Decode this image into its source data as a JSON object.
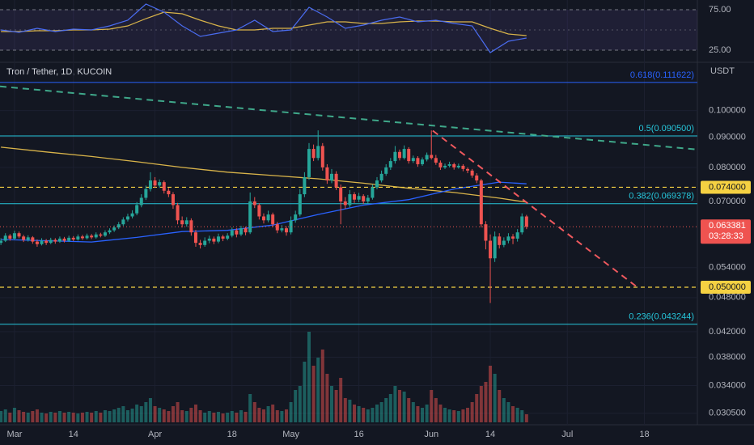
{
  "chart_data": {
    "type": "candlestick",
    "title": "Tron / Tether, 1D, KUCOIN",
    "y_axis_label": "USDT",
    "log_scale": true,
    "grid": true,
    "up_color": "#26a69a",
    "down_color": "#ef5350",
    "xlim": [
      -3.2,
      150.7
    ],
    "xticks": [
      {
        "value": 0,
        "label": "Mar"
      },
      {
        "value": 13,
        "label": "14"
      },
      {
        "value": 31,
        "label": "Apr"
      },
      {
        "value": 48,
        "label": "18"
      },
      {
        "value": 61,
        "label": "May"
      },
      {
        "value": 76,
        "label": "16"
      },
      {
        "value": 92,
        "label": "Jun"
      },
      {
        "value": 105,
        "label": "14"
      },
      {
        "value": 122,
        "label": "Jul"
      },
      {
        "value": 139,
        "label": "18"
      }
    ],
    "ylim": [
      0.02915,
      0.1141
    ],
    "yticks": [
      {
        "value": 0.1,
        "label": "0.100000"
      },
      {
        "value": 0.09,
        "label": "0.090000"
      },
      {
        "value": 0.08,
        "label": "0.080000"
      },
      {
        "value": 0.07,
        "label": "0.070000"
      },
      {
        "value": 0.054,
        "label": "0.054000"
      },
      {
        "value": 0.048,
        "label": "0.048000"
      },
      {
        "value": 0.042,
        "label": "0.042000"
      },
      {
        "value": 0.038,
        "label": "0.038000"
      },
      {
        "value": 0.034,
        "label": "0.034000"
      },
      {
        "value": 0.0305,
        "label": "0.030500"
      }
    ],
    "x": [
      -3,
      -2,
      -1,
      0,
      1,
      2,
      3,
      4,
      5,
      6,
      7,
      8,
      9,
      10,
      11,
      12,
      13,
      14,
      15,
      16,
      17,
      18,
      19,
      20,
      21,
      22,
      23,
      24,
      25,
      26,
      27,
      28,
      29,
      30,
      31,
      32,
      33,
      34,
      35,
      36,
      37,
      38,
      39,
      40,
      41,
      42,
      43,
      44,
      45,
      46,
      47,
      48,
      49,
      50,
      51,
      52,
      53,
      54,
      55,
      56,
      57,
      58,
      59,
      60,
      61,
      62,
      63,
      64,
      65,
      66,
      67,
      68,
      69,
      70,
      71,
      72,
      73,
      74,
      75,
      76,
      77,
      78,
      79,
      80,
      81,
      82,
      83,
      84,
      85,
      86,
      87,
      88,
      89,
      90,
      91,
      92,
      93,
      94,
      95,
      96,
      97,
      98,
      99,
      100,
      101,
      102,
      103,
      104,
      105,
      106,
      107,
      108,
      109,
      110,
      111,
      112,
      113
    ],
    "ohlc": [
      [
        0.0595,
        0.0606,
        0.059,
        0.06
      ],
      [
        0.06,
        0.0618,
        0.0597,
        0.0612
      ],
      [
        0.0612,
        0.0616,
        0.06,
        0.0605
      ],
      [
        0.0605,
        0.0624,
        0.0602,
        0.0618
      ],
      [
        0.0618,
        0.0622,
        0.0606,
        0.061
      ],
      [
        0.061,
        0.0614,
        0.0597,
        0.0602
      ],
      [
        0.0602,
        0.0613,
        0.0598,
        0.0608
      ],
      [
        0.0608,
        0.0611,
        0.0593,
        0.0598
      ],
      [
        0.0598,
        0.0603,
        0.0586,
        0.0592
      ],
      [
        0.0592,
        0.0606,
        0.0589,
        0.06
      ],
      [
        0.06,
        0.0604,
        0.059,
        0.0595
      ],
      [
        0.0595,
        0.0607,
        0.0592,
        0.0602
      ],
      [
        0.0602,
        0.0606,
        0.0593,
        0.0598
      ],
      [
        0.0598,
        0.061,
        0.0595,
        0.0605
      ],
      [
        0.0605,
        0.0609,
        0.0596,
        0.06
      ],
      [
        0.06,
        0.0612,
        0.0597,
        0.0607
      ],
      [
        0.0607,
        0.0611,
        0.0599,
        0.0603
      ],
      [
        0.0603,
        0.0615,
        0.06,
        0.061
      ],
      [
        0.061,
        0.0614,
        0.0602,
        0.0606
      ],
      [
        0.0606,
        0.0617,
        0.0603,
        0.0612
      ],
      [
        0.0612,
        0.0616,
        0.0604,
        0.0608
      ],
      [
        0.0608,
        0.062,
        0.0605,
        0.0615
      ],
      [
        0.0615,
        0.0619,
        0.0608,
        0.0612
      ],
      [
        0.0612,
        0.0625,
        0.0609,
        0.062
      ],
      [
        0.062,
        0.063,
        0.0616,
        0.0625
      ],
      [
        0.0625,
        0.0637,
        0.0621,
        0.0632
      ],
      [
        0.0632,
        0.0646,
        0.0628,
        0.064
      ],
      [
        0.064,
        0.0658,
        0.0636,
        0.0652
      ],
      [
        0.0652,
        0.0667,
        0.0647,
        0.066
      ],
      [
        0.066,
        0.0676,
        0.0655,
        0.0668
      ],
      [
        0.0668,
        0.0698,
        0.0663,
        0.069
      ],
      [
        0.069,
        0.072,
        0.0684,
        0.071
      ],
      [
        0.071,
        0.0745,
        0.0704,
        0.0735
      ],
      [
        0.0735,
        0.0785,
        0.0728,
        0.076
      ],
      [
        0.076,
        0.077,
        0.0738,
        0.0745
      ],
      [
        0.0745,
        0.0763,
        0.0738,
        0.0755
      ],
      [
        0.0755,
        0.076,
        0.0722,
        0.073
      ],
      [
        0.073,
        0.0738,
        0.0712,
        0.072
      ],
      [
        0.072,
        0.0726,
        0.068,
        0.069
      ],
      [
        0.069,
        0.0696,
        0.064,
        0.065
      ],
      [
        0.065,
        0.066,
        0.0632,
        0.064
      ],
      [
        0.064,
        0.0658,
        0.0634,
        0.065
      ],
      [
        0.065,
        0.0655,
        0.0612,
        0.062
      ],
      [
        0.062,
        0.0626,
        0.0586,
        0.0595
      ],
      [
        0.0595,
        0.0602,
        0.0582,
        0.059
      ],
      [
        0.059,
        0.0608,
        0.0586,
        0.06
      ],
      [
        0.06,
        0.0612,
        0.0594,
        0.0605
      ],
      [
        0.0605,
        0.061,
        0.0592,
        0.0598
      ],
      [
        0.0598,
        0.0617,
        0.0594,
        0.061
      ],
      [
        0.061,
        0.0614,
        0.0599,
        0.0605
      ],
      [
        0.0605,
        0.0618,
        0.0601,
        0.0612
      ],
      [
        0.0612,
        0.0632,
        0.0608,
        0.0625
      ],
      [
        0.0625,
        0.063,
        0.0608,
        0.0615
      ],
      [
        0.0615,
        0.0636,
        0.0611,
        0.063
      ],
      [
        0.063,
        0.0634,
        0.0613,
        0.062
      ],
      [
        0.062,
        0.0725,
        0.0616,
        0.07
      ],
      [
        0.07,
        0.0712,
        0.0682,
        0.069
      ],
      [
        0.069,
        0.0695,
        0.0652,
        0.066
      ],
      [
        0.066,
        0.0668,
        0.0642,
        0.065
      ],
      [
        0.065,
        0.0675,
        0.0645,
        0.0665
      ],
      [
        0.0665,
        0.067,
        0.0633,
        0.064
      ],
      [
        0.064,
        0.0646,
        0.0618,
        0.0625
      ],
      [
        0.0625,
        0.0638,
        0.062,
        0.063
      ],
      [
        0.063,
        0.0635,
        0.0612,
        0.062
      ],
      [
        0.062,
        0.066,
        0.0615,
        0.065
      ],
      [
        0.065,
        0.0675,
        0.0644,
        0.0665
      ],
      [
        0.0665,
        0.0735,
        0.066,
        0.072
      ],
      [
        0.072,
        0.0785,
        0.0712,
        0.077
      ],
      [
        0.077,
        0.088,
        0.0762,
        0.086
      ],
      [
        0.086,
        0.0875,
        0.082,
        0.083
      ],
      [
        0.083,
        0.0925,
        0.0822,
        0.087
      ],
      [
        0.087,
        0.088,
        0.079,
        0.08
      ],
      [
        0.08,
        0.081,
        0.075,
        0.076
      ],
      [
        0.076,
        0.0795,
        0.0752,
        0.078
      ],
      [
        0.078,
        0.0788,
        0.0732,
        0.074
      ],
      [
        0.074,
        0.0748,
        0.064,
        0.07
      ],
      [
        0.07,
        0.0712,
        0.068,
        0.069
      ],
      [
        0.069,
        0.0732,
        0.0684,
        0.072
      ],
      [
        0.072,
        0.0726,
        0.0696,
        0.0705
      ],
      [
        0.0705,
        0.0724,
        0.0698,
        0.0715
      ],
      [
        0.0715,
        0.072,
        0.0693,
        0.07
      ],
      [
        0.07,
        0.0718,
        0.0694,
        0.071
      ],
      [
        0.071,
        0.0748,
        0.0705,
        0.074
      ],
      [
        0.074,
        0.077,
        0.0734,
        0.076
      ],
      [
        0.076,
        0.079,
        0.0754,
        0.078
      ],
      [
        0.078,
        0.081,
        0.0774,
        0.08
      ],
      [
        0.08,
        0.083,
        0.0792,
        0.082
      ],
      [
        0.082,
        0.087,
        0.0812,
        0.085
      ],
      [
        0.085,
        0.0858,
        0.0822,
        0.083
      ],
      [
        0.083,
        0.0872,
        0.0825,
        0.086
      ],
      [
        0.086,
        0.0866,
        0.0812,
        0.082
      ],
      [
        0.082,
        0.0838,
        0.0814,
        0.083
      ],
      [
        0.083,
        0.0836,
        0.0802,
        0.081
      ],
      [
        0.081,
        0.0832,
        0.0805,
        0.0825
      ],
      [
        0.0825,
        0.0848,
        0.0819,
        0.084
      ],
      [
        0.084,
        0.0925,
        0.0825,
        0.083
      ],
      [
        0.083,
        0.084,
        0.0808,
        0.0815
      ],
      [
        0.0815,
        0.0822,
        0.0792,
        0.08
      ],
      [
        0.08,
        0.0812,
        0.0795,
        0.0805
      ],
      [
        0.0805,
        0.0818,
        0.08,
        0.081
      ],
      [
        0.081,
        0.0815,
        0.0793,
        0.08
      ],
      [
        0.08,
        0.0812,
        0.0796,
        0.0805
      ],
      [
        0.0805,
        0.081,
        0.0788,
        0.0795
      ],
      [
        0.0795,
        0.08,
        0.0782,
        0.079
      ],
      [
        0.079,
        0.0795,
        0.0768,
        0.0775
      ],
      [
        0.0775,
        0.0782,
        0.0752,
        0.076
      ],
      [
        0.076,
        0.0765,
        0.0632,
        0.064
      ],
      [
        0.064,
        0.0648,
        0.058,
        0.06
      ],
      [
        0.06,
        0.0615,
        0.047,
        0.056
      ],
      [
        0.056,
        0.0622,
        0.0552,
        0.061
      ],
      [
        0.061,
        0.0618,
        0.0582,
        0.059
      ],
      [
        0.059,
        0.0608,
        0.0585,
        0.06
      ],
      [
        0.06,
        0.0618,
        0.0594,
        0.061
      ],
      [
        0.061,
        0.0616,
        0.0592,
        0.0605
      ],
      [
        0.0605,
        0.0628,
        0.0598,
        0.062
      ],
      [
        0.062,
        0.0668,
        0.0615,
        0.066
      ],
      [
        0.066,
        0.0664,
        0.0628,
        0.063381
      ]
    ],
    "volume": [
      14,
      16,
      12,
      18,
      15,
      13,
      12,
      14,
      16,
      12,
      11,
      13,
      12,
      14,
      12,
      13,
      12,
      11,
      12,
      13,
      12,
      14,
      12,
      15,
      14,
      16,
      18,
      20,
      15,
      17,
      22,
      20,
      25,
      30,
      20,
      18,
      16,
      14,
      20,
      25,
      15,
      14,
      18,
      22,
      15,
      12,
      14,
      12,
      13,
      11,
      12,
      14,
      12,
      15,
      13,
      35,
      25,
      18,
      16,
      20,
      22,
      15,
      14,
      16,
      25,
      40,
      45,
      75,
      112,
      70,
      80,
      90,
      60,
      45,
      40,
      55,
      30,
      28,
      22,
      20,
      18,
      16,
      18,
      22,
      25,
      30,
      35,
      45,
      40,
      38,
      30,
      25,
      20,
      18,
      22,
      40,
      30,
      22,
      18,
      16,
      15,
      14,
      16,
      18,
      25,
      35,
      45,
      50,
      70,
      60,
      40,
      30,
      25,
      20,
      18,
      15,
      10
    ],
    "moving_averages": [
      {
        "color": "#d9b44a",
        "x": [
          -3,
          7,
          17,
          27,
          37,
          47,
          57,
          67,
          77,
          87,
          97,
          107,
          113
        ],
        "values": [
          0.0866,
          0.085,
          0.0835,
          0.0818,
          0.08,
          0.0785,
          0.0775,
          0.0765,
          0.0752,
          0.0737,
          0.0725,
          0.0709,
          0.0698
        ]
      },
      {
        "color": "#2962ff",
        "x": [
          -3,
          7,
          17,
          27,
          37,
          47,
          57,
          67,
          77,
          87,
          97,
          107,
          113
        ],
        "values": [
          0.0603,
          0.06,
          0.0597,
          0.0608,
          0.0622,
          0.0625,
          0.0638,
          0.0665,
          0.069,
          0.0705,
          0.0735,
          0.0755,
          0.075
        ]
      }
    ],
    "fib_levels": [
      {
        "value": 0.111622,
        "label": "0.618(0.111622)",
        "color": "#2962ff"
      },
      {
        "value": 0.0905,
        "label": "0.5(0.090500)",
        "color": "#26c6da"
      },
      {
        "value": 0.069378,
        "label": "0.382(0.069378)",
        "color": "#26c6da"
      },
      {
        "value": 0.043244,
        "label": "0.236(0.043244)",
        "color": "#26c6da"
      }
    ],
    "horizontal_lines": [
      {
        "value": 0.074,
        "label": "0.074000",
        "color": "#f5d142"
      },
      {
        "value": 0.05,
        "label": "0.050000",
        "color": "#f5d142"
      }
    ],
    "last_price": {
      "value": 0.063381,
      "label": "0.063381",
      "countdown": "03:28:33",
      "color": "#ef5350"
    },
    "trendlines": [
      {
        "color": "#3fa88a",
        "x": [
          -3.2,
          150.7
        ],
        "values": [
          0.1099,
          0.0858
        ]
      },
      {
        "color": "#f0595e",
        "x": [
          92.3,
          137.9
        ],
        "values": [
          0.0924,
          0.0497
        ]
      }
    ],
    "rsi": {
      "ylim": [
        15,
        85
      ],
      "yticks": [
        {
          "value": 75,
          "label": "75.00"
        },
        {
          "value": 25,
          "label": "25.00"
        }
      ],
      "midline": 50,
      "x": [
        -3,
        1,
        5,
        9,
        13,
        17,
        21,
        25,
        29,
        33,
        37,
        41,
        45,
        49,
        53,
        57,
        61,
        65,
        69,
        73,
        77,
        81,
        85,
        89,
        93,
        97,
        101,
        105,
        109,
        113
      ],
      "values": [
        50,
        47,
        52,
        48,
        51,
        50,
        55,
        62,
        82,
        72,
        55,
        42,
        46,
        50,
        62,
        48,
        50,
        78,
        66,
        52,
        56,
        62,
        66,
        60,
        62,
        58,
        55,
        22,
        36,
        40
      ],
      "color": "#4a6cf0",
      "ma": {
        "color": "#d9b44a",
        "values": [
          48,
          48,
          49,
          49,
          50,
          50,
          51,
          55,
          64,
          72,
          70,
          62,
          55,
          50,
          50,
          52,
          52,
          56,
          60,
          60,
          58,
          58,
          60,
          61,
          61,
          60,
          60,
          52,
          45,
          43
        ]
      }
    }
  }
}
